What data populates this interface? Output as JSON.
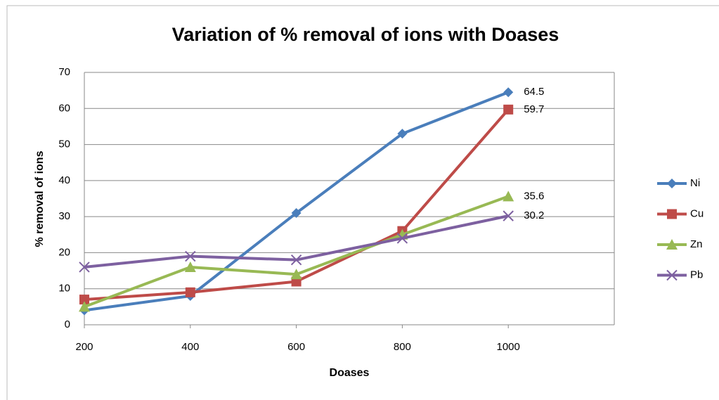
{
  "chart_data": {
    "type": "line",
    "title": "Variation of % removal of ions with Doases",
    "xlabel": "Doases",
    "ylabel": "% removal of ions",
    "x": [
      200,
      400,
      600,
      800,
      1000
    ],
    "series": [
      {
        "name": "Ni",
        "color": "#4a7ebb",
        "marker": "diamond",
        "values": [
          4,
          8,
          31,
          53,
          64.5
        ],
        "value_labels": [
          null,
          null,
          null,
          null,
          "64.5"
        ]
      },
      {
        "name": "Cu",
        "color": "#be4b48",
        "marker": "square",
        "values": [
          7,
          9,
          12,
          26,
          59.7
        ],
        "value_labels": [
          null,
          null,
          null,
          null,
          "59.7"
        ]
      },
      {
        "name": "Zn",
        "color": "#98b954",
        "marker": "triangle",
        "values": [
          5,
          16,
          14,
          25,
          35.6
        ],
        "value_labels": [
          null,
          null,
          null,
          null,
          "35.6"
        ]
      },
      {
        "name": "Pb",
        "color": "#7d60a0",
        "marker": "x",
        "values": [
          16,
          19,
          18,
          24,
          30.2
        ],
        "value_labels": [
          null,
          null,
          null,
          null,
          "30.2"
        ]
      }
    ],
    "xlim": [
      200,
      1200
    ],
    "xticks": [
      200,
      400,
      600,
      800,
      1000
    ],
    "ylim": [
      0,
      70
    ],
    "yticks": [
      0,
      10,
      20,
      30,
      40,
      50,
      60,
      70
    ],
    "grid": true,
    "legend": "right"
  }
}
